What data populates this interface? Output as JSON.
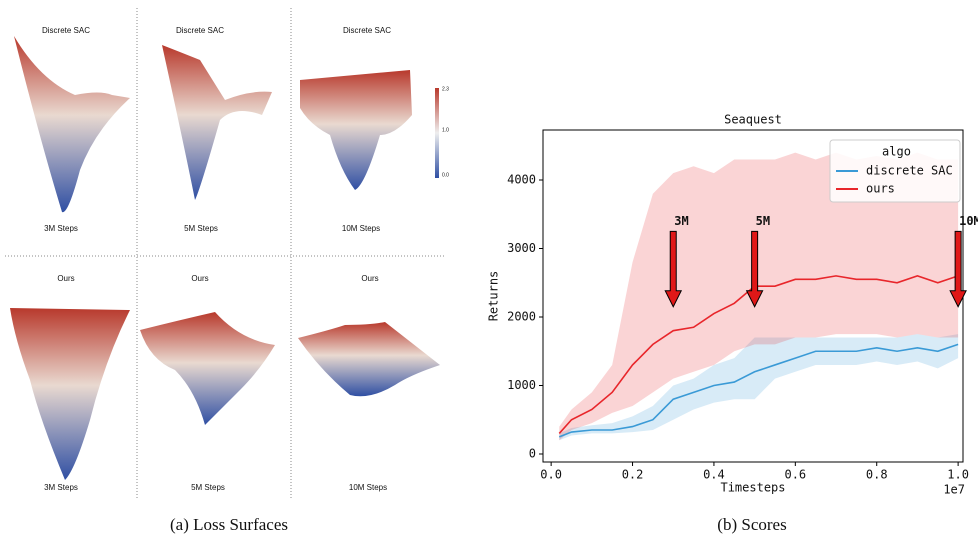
{
  "loss_surfaces": {
    "panels": [
      {
        "title": "Discrete SAC",
        "steps": "3M Steps"
      },
      {
        "title": "Discrete SAC",
        "steps": "5M Steps"
      },
      {
        "title": "Discrete SAC",
        "steps": "10M Steps"
      },
      {
        "title": "Ours",
        "steps": "3M Steps"
      },
      {
        "title": "Ours",
        "steps": "5M Steps"
      },
      {
        "title": "Ours",
        "steps": "10M Steps"
      }
    ],
    "colorbar_ticks": [
      "2.3",
      "1.0",
      "0.0"
    ],
    "caption": "(a) Loss Surfaces"
  },
  "chart_data": {
    "type": "line",
    "title": "Seaquest",
    "x_label": "Timesteps",
    "y_label": "Returns",
    "x_offset_label": "1e7",
    "caption": "(b) Scores",
    "xlim": [
      -0.02,
      1.012
    ],
    "ylim": [
      -117,
      4730
    ],
    "xticks": [
      {
        "value": 0,
        "label": "0.0"
      },
      0.2,
      0.4,
      0.6,
      0.8,
      {
        "value": 1,
        "label": "1.0"
      }
    ],
    "yticks": [
      0,
      1000,
      2000,
      3000,
      4000
    ],
    "legend_title": "algo",
    "legend": "upper right",
    "x": [
      0.02,
      0.05,
      0.1,
      0.15,
      0.2,
      0.25,
      0.3,
      0.35,
      0.4,
      0.45,
      0.5,
      0.55,
      0.6,
      0.65,
      0.7,
      0.75,
      0.8,
      0.85,
      0.9,
      0.95,
      1.0
    ],
    "series": [
      {
        "name": "discrete SAC",
        "color": "#3a9ad6",
        "values": [
          250,
          320,
          350,
          350,
          400,
          500,
          800,
          900,
          1000,
          1050,
          1200,
          1300,
          1400,
          1500,
          1500,
          1500,
          1550,
          1500,
          1550,
          1500,
          1600
        ],
        "upper": [
          300,
          380,
          420,
          450,
          550,
          700,
          1000,
          1100,
          1300,
          1400,
          1700,
          1700,
          1700,
          1700,
          1700,
          1700,
          1700,
          1700,
          1750,
          1700,
          1750
        ],
        "lower": [
          200,
          270,
          300,
          300,
          320,
          350,
          500,
          650,
          750,
          800,
          800,
          1100,
          1200,
          1300,
          1300,
          1300,
          1350,
          1300,
          1350,
          1250,
          1400
        ]
      },
      {
        "name": "ours",
        "color": "#e8262b",
        "values": [
          300,
          500,
          650,
          900,
          1300,
          1600,
          1800,
          1850,
          2050,
          2200,
          2450,
          2450,
          2550,
          2550,
          2600,
          2550,
          2550,
          2500,
          2600,
          2500,
          2600
        ],
        "upper": [
          400,
          650,
          900,
          1300,
          2800,
          3800,
          4100,
          4200,
          4100,
          4300,
          4300,
          4300,
          4400,
          4300,
          4400,
          4300,
          4350,
          4300,
          4400,
          4300,
          4300
        ],
        "lower": [
          200,
          350,
          450,
          600,
          700,
          900,
          1100,
          1200,
          1300,
          1500,
          1600,
          1600,
          1700,
          1700,
          1750,
          1750,
          1750,
          1700,
          1750,
          1700,
          1700
        ]
      }
    ],
    "annotations": [
      {
        "text": "3M",
        "x": 0.3,
        "y": [
          3250,
          2150
        ]
      },
      {
        "text": "5M",
        "x": 0.5,
        "y": [
          3250,
          2150
        ]
      },
      {
        "text": "10M",
        "x": 1.0,
        "y": [
          3250,
          2150
        ]
      }
    ]
  }
}
